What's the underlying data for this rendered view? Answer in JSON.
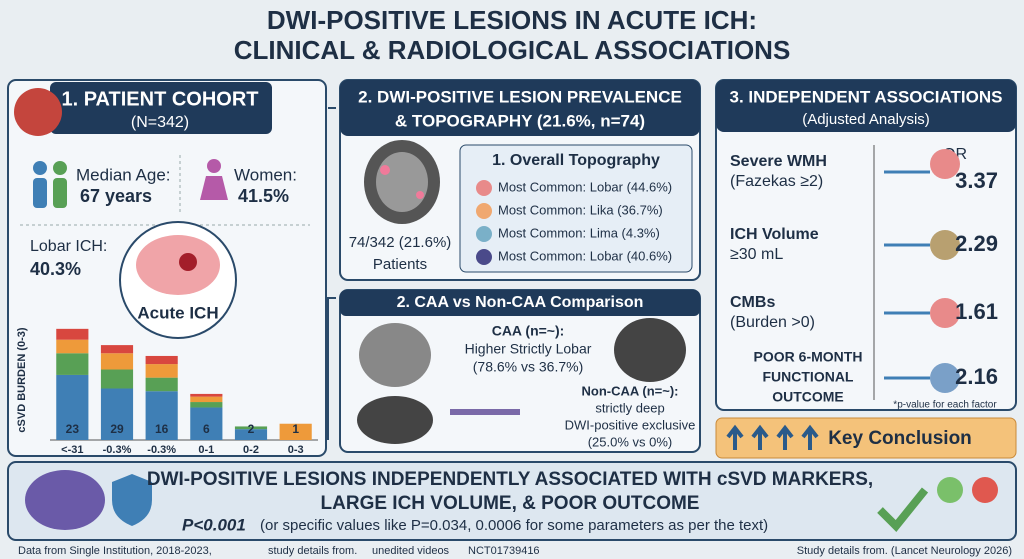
{
  "header": {
    "title_lines": [
      "DWI-POSITIVE LESIONS IN ACUTE ICH:",
      "CLINICAL & RADIOLOGICAL ASSOCIATIONS"
    ]
  },
  "cohort": {
    "title": "1. PATIENT COHORT",
    "n": "(N=342)",
    "age_label": "Median Age:",
    "age_value": "67 years",
    "women_label": "Women:",
    "women_value": "41.5%",
    "lobar_label": "Lobar ICH:",
    "lobar_value": "40.3%",
    "center_label": "Acute ICH",
    "chart": {
      "type": "bar",
      "y_label": "cSVD BURDEN (0-3)",
      "categories": [
        "<-31",
        "-0.3%",
        "-0.3%",
        "0-1",
        "0-2",
        "0-3"
      ],
      "labels": [
        23,
        29,
        16,
        6,
        2,
        1
      ],
      "series": [
        {
          "color": "#3f7fb5",
          "values": [
            24,
            19,
            18,
            12,
            4,
            0
          ]
        },
        {
          "color": "#58a055",
          "values": [
            8,
            7,
            5,
            2,
            1,
            0
          ]
        },
        {
          "color": "#ee9a3a",
          "values": [
            5,
            6,
            5,
            2,
            0,
            6
          ]
        },
        {
          "color": "#d8473f",
          "values": [
            4,
            3,
            3,
            1,
            0,
            0
          ]
        }
      ],
      "ylim": [
        0,
        45
      ]
    }
  },
  "prevalence": {
    "title_lines": [
      "2. DWI-POSITIVE LESION PREVALENCE",
      "& TOPOGRAPHY (21.6%, n=74)"
    ],
    "count": "74/342 (21.6%)",
    "count_label": "Patients",
    "box_title": "1. Overall Topography",
    "items": [
      "Most Common: Lobar (44.6%)",
      "Most Common: Lika (36.7%)",
      "Most Common: Lima (4.3%)",
      "Most Common: Lobar (40.6%)"
    ]
  },
  "comparison": {
    "title": "2. CAA vs Non-CAA Comparison",
    "caa_lines": [
      "CAA (n=~):",
      "Higher Strictly Lobar",
      "(78.6% vs 36.7%)"
    ],
    "noncaa_lines": [
      "Non-CAA (n=~):",
      "strictly deep",
      "DWI-positive exclusive",
      "(25.0% vs 0%)"
    ]
  },
  "associations": {
    "title": "3. INDEPENDENT ASSOCIATIONS",
    "subtitle": "(Adjusted Analysis)",
    "or_label": "OR",
    "rows": [
      {
        "lines": [
          "Severe WMH",
          "(Fazekas ≥2)"
        ],
        "value": "3.37"
      },
      {
        "lines": [
          "ICH Volume",
          "≥30 mL"
        ],
        "value": "2.29"
      },
      {
        "lines": [
          "CMBs",
          "(Burden >0)"
        ],
        "value": "1.61"
      },
      {
        "lines": [
          "POOR 6-MONTH",
          "FUNCTIONAL",
          "OUTCOME"
        ],
        "value": "2.16"
      }
    ],
    "footnote": "*p-value for each factor",
    "conclusion": "Key Conclusion"
  },
  "summary": {
    "lines": [
      "DWI-POSITIVE LESIONS INDEPENDENTLY ASSOCIATED WITH cSVD MARKERS,",
      "LARGE ICH VOLUME, & POOR OUTCOME"
    ],
    "p_value": "P<0.001",
    "p_note": "(or specific values like P=0.034, 0.0006 for some parameters as per the text)"
  },
  "footer": {
    "items": [
      "Data from Single Institution, 2018-2023,",
      "study details from.",
      "unedited videos",
      "NCT01739416"
    ],
    "right": "Study details from. (Lancet Neurology 2026)"
  }
}
